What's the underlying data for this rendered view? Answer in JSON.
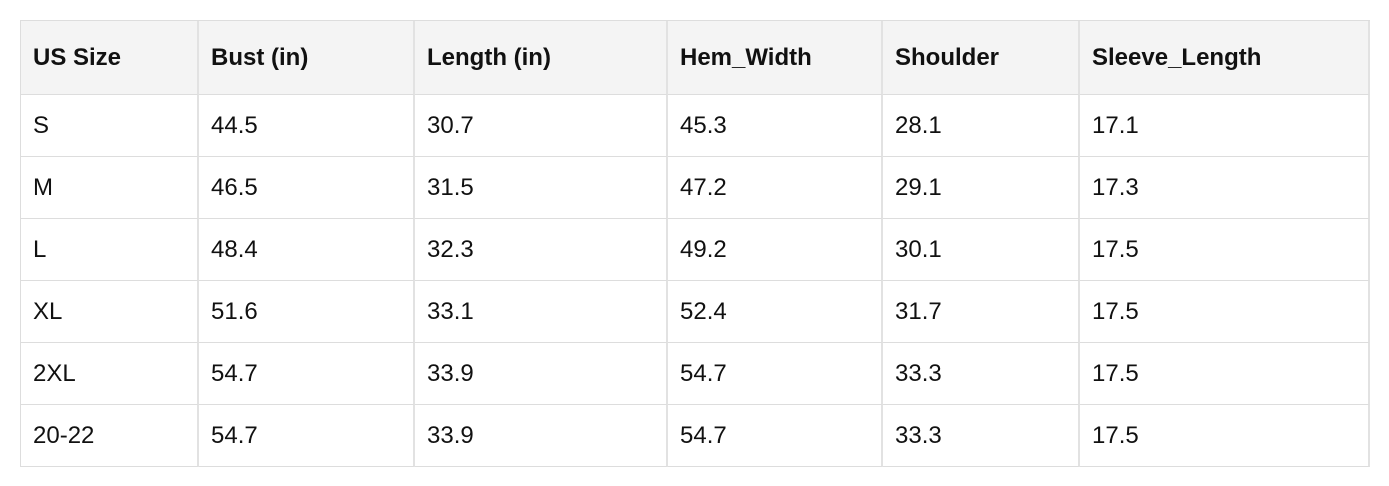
{
  "table": {
    "header": [
      "US Size",
      "Bust (in)",
      "Length (in)",
      "Hem_Width",
      "Shoulder",
      "Sleeve_Length"
    ],
    "rows": [
      [
        "S",
        44.5,
        30.7,
        45.3,
        28.1,
        17.1
      ],
      [
        "M",
        46.5,
        31.5,
        47.2,
        29.1,
        17.3
      ],
      [
        "L",
        48.4,
        32.3,
        49.2,
        30.1,
        17.5
      ],
      [
        "XL",
        51.6,
        33.1,
        52.4,
        31.7,
        17.5
      ],
      [
        "2XL",
        54.7,
        33.9,
        54.7,
        33.3,
        17.5
      ],
      [
        "20-22",
        54.7,
        33.9,
        54.7,
        33.3,
        17.5
      ]
    ]
  }
}
